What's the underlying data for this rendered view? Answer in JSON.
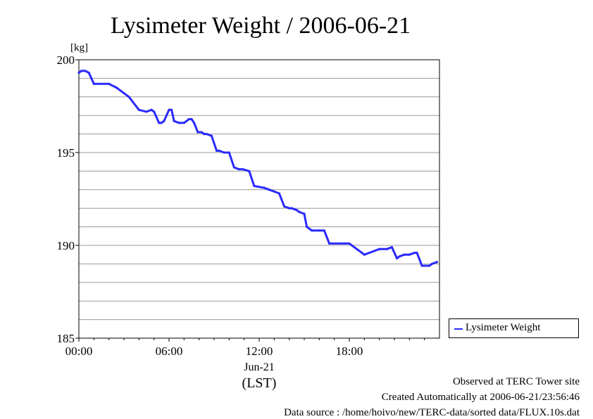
{
  "chart_data": {
    "type": "line",
    "title": "Lysimeter Weight / 2006-06-21",
    "ylabel": "[kg]",
    "ylim": [
      185,
      200
    ],
    "yticks": [
      185,
      190,
      195,
      200
    ],
    "xlim": [
      "2006-06-21 00:00",
      "2006-06-22 00:00"
    ],
    "xticks": [
      {
        "x": "00:00",
        "label": "00:00"
      },
      {
        "x": "06:00",
        "label": "06:00"
      },
      {
        "x": "12:00",
        "label": "12:00"
      },
      {
        "x": "18:00",
        "label": "18:00"
      }
    ],
    "date_label": "Jun-21",
    "xlabel": "(LST)",
    "grid": true,
    "legend": "right",
    "color": "#2a2aff",
    "series": [
      {
        "name": "Lysimeter Weight",
        "x": [
          "00:00",
          "00:10",
          "00:25",
          "00:40",
          "01:00",
          "02:00",
          "02:30",
          "03:20",
          "04:00",
          "04:30",
          "04:50",
          "05:00",
          "05:20",
          "05:30",
          "05:40",
          "06:00",
          "06:10",
          "06:20",
          "06:40",
          "07:00",
          "07:20",
          "07:30",
          "07:40",
          "07:55",
          "08:10",
          "08:20",
          "08:30",
          "08:50",
          "09:10",
          "09:20",
          "09:40",
          "10:00",
          "10:20",
          "10:40",
          "10:55",
          "11:20",
          "11:40",
          "12:20",
          "12:40",
          "13:00",
          "13:20",
          "13:40",
          "14:00",
          "14:10",
          "14:30",
          "14:40",
          "15:00",
          "15:10",
          "15:30",
          "16:00",
          "16:20",
          "16:40",
          "17:20",
          "17:40",
          "18:00",
          "19:00",
          "19:20",
          "19:40",
          "20:00",
          "20:30",
          "20:50",
          "21:10",
          "21:20",
          "21:40",
          "22:00",
          "22:20",
          "22:30",
          "22:50",
          "23:20",
          "23:30",
          "23:50"
        ],
        "values": [
          199.3,
          199.4,
          199.4,
          199.3,
          198.7,
          198.7,
          198.5,
          198.0,
          197.3,
          197.2,
          197.3,
          197.2,
          196.6,
          196.6,
          196.7,
          197.3,
          197.3,
          196.7,
          196.6,
          196.6,
          196.8,
          196.8,
          196.6,
          196.1,
          196.1,
          196.0,
          196.0,
          195.9,
          195.1,
          195.1,
          195.0,
          195.0,
          194.2,
          194.1,
          194.1,
          194.0,
          193.2,
          193.1,
          193.0,
          192.9,
          192.8,
          192.1,
          192.0,
          192.0,
          191.9,
          191.8,
          191.7,
          191.0,
          190.8,
          190.8,
          190.8,
          190.1,
          190.1,
          190.1,
          190.1,
          189.5,
          189.6,
          189.7,
          189.8,
          189.8,
          189.9,
          189.3,
          189.4,
          189.5,
          189.5,
          189.6,
          189.6,
          188.9,
          188.9,
          189.0,
          189.1
        ]
      }
    ]
  },
  "footer": {
    "observed": "Observed at TERC Tower site",
    "created": "Created Automatically at 2006-06-21/23:56:46",
    "source": "Data source : /home/hoivo/new/TERC-data/sorted  data/FLUX.10s.dat"
  }
}
